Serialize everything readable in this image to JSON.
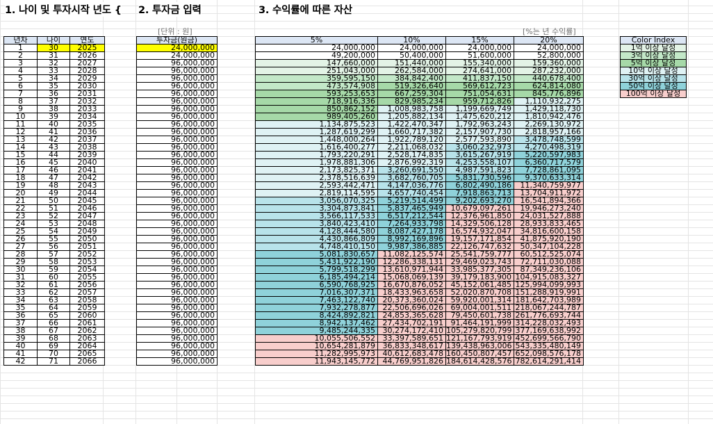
{
  "titles": {
    "sec1": "1. 나이 및 투자시작 년도 {",
    "sec2": "2. 투자금 입력",
    "sec3": "3. 수익률에 따른 자산"
  },
  "units": {
    "won": "[단위 : 원]",
    "rate": "[%는 년 수익률]"
  },
  "table1": {
    "headers": [
      "년차",
      "나이",
      "연도"
    ],
    "start_age": 30,
    "start_year": 2025,
    "rows": 42
  },
  "table2": {
    "header": "투자금(원금)",
    "values": [
      "24,000,000",
      "24,000,000",
      "96,000,000",
      "96,000,000",
      "96,000,000",
      "96,000,000",
      "96,000,000",
      "96,000,000",
      "96,000,000",
      "96,000,000",
      "96,000,000",
      "96,000,000",
      "96,000,000",
      "96,000,000",
      "96,000,000",
      "96,000,000",
      "96,000,000",
      "96,000,000",
      "96,000,000",
      "96,000,000",
      "96,000,000",
      "96,000,000",
      "96,000,000",
      "96,000,000",
      "96,000,000",
      "96,000,000",
      "96,000,000",
      "96,000,000",
      "96,000,000",
      "96,000,000",
      "96,000,000",
      "96,000,000",
      "96,000,000",
      "96,000,000",
      "96,000,000",
      "96,000,000",
      "96,000,000",
      "96,000,000",
      "96,000,000",
      "96,000,000",
      "96,000,000",
      "96,000,000"
    ]
  },
  "table3": {
    "headers": [
      "5%",
      "10%",
      "15%",
      "20%"
    ],
    "columns": [
      [
        "24,000,000",
        "49,200,000",
        "147,660,000",
        "251,043,000",
        "359,595,150",
        "473,574,908",
        "593,253,653",
        "718,916,336",
        "850,862,152",
        "989,405,260",
        "1,134,875,523",
        "1,287,619,299",
        "1,448,000,264",
        "1,616,400,277",
        "1,793,220,291",
        "1,978,881,306",
        "2,173,825,371",
        "2,378,516,639",
        "2,593,442,471",
        "2,819,114,595",
        "3,056,070,325",
        "3,304,873,841",
        "3,566,117,533",
        "3,840,423,410",
        "4,128,444,580",
        "4,430,866,809",
        "4,748,410,150",
        "5,081,830,657",
        "5,431,922,190",
        "5,799,518,299",
        "6,185,494,214",
        "6,590,768,925",
        "7,016,307,371",
        "7,463,122,740",
        "7,932,278,877",
        "8,424,892,821",
        "8,942,137,462",
        "9,485,244,335",
        "10,055,506,552",
        "10,654,281,879",
        "11,282,995,973",
        "11,943,145,772"
      ],
      [
        "24,000,000",
        "50,400,000",
        "151,440,000",
        "262,584,000",
        "384,842,400",
        "519,326,640",
        "667,259,304",
        "829,985,234",
        "1,008,983,758",
        "1,205,882,134",
        "1,422,470,347",
        "1,660,717,382",
        "1,922,789,120",
        "2,211,068,032",
        "2,528,174,835",
        "2,876,992,319",
        "3,260,691,550",
        "3,682,760,705",
        "4,147,036,776",
        "4,657,740,454",
        "5,219,514,499",
        "5,837,465,949",
        "6,517,212,544",
        "7,264,933,798",
        "8,087,427,178",
        "8,992,169,896",
        "9,987,386,885",
        "11,082,125,574",
        "12,286,338,131",
        "13,610,971,944",
        "15,068,069,139",
        "16,670,876,052",
        "18,433,963,658",
        "20,373,360,024",
        "22,506,696,026",
        "24,853,365,628",
        "27,434,702,191",
        "30,274,172,410",
        "33,397,589,651",
        "36,833,348,617",
        "40,612,683,478",
        "44,769,951,826"
      ],
      [
        "24,000,000",
        "51,600,000",
        "155,340,000",
        "274,641,000",
        "411,837,150",
        "569,612,723",
        "751,054,631",
        "959,712,826",
        "1,199,669,749",
        "1,475,620,212",
        "1,792,963,243",
        "2,157,907,730",
        "2,577,593,890",
        "3,060,232,973",
        "3,615,267,919",
        "4,253,558,107",
        "4,987,591,823",
        "5,831,730,596",
        "6,802,490,186",
        "7,918,863,713",
        "9,202,693,270",
        "10,679,097,261",
        "12,376,961,850",
        "14,329,506,128",
        "16,574,932,047",
        "19,157,171,854",
        "22,126,747,632",
        "25,541,759,777",
        "29,469,023,743",
        "33,985,377,305",
        "39,179,183,900",
        "45,152,061,485",
        "52,020,870,708",
        "59,920,001,314",
        "69,004,001,511",
        "79,450,601,738",
        "91,464,191,999",
        "105,279,820,799",
        "121,167,793,919",
        "139,438,963,006",
        "160,450,807,457",
        "184,614,428,576"
      ],
      [
        "24,000,000",
        "52,800,000",
        "159,360,000",
        "287,232,000",
        "440,678,400",
        "624,814,080",
        "845,776,896",
        "1,110,932,275",
        "1,429,118,730",
        "1,810,942,476",
        "2,269,130,972",
        "2,818,957,166",
        "3,478,748,599",
        "4,270,498,319",
        "5,220,597,983",
        "6,360,717,579",
        "7,728,861,095",
        "9,370,633,314",
        "11,340,759,977",
        "13,704,911,972",
        "16,541,894,366",
        "19,946,273,240",
        "24,031,527,888",
        "28,933,833,465",
        "34,816,600,158",
        "41,875,920,190",
        "50,347,104,228",
        "60,512,525,074",
        "72,711,030,088",
        "87,349,236,106",
        "104,915,083,327",
        "125,994,099,993",
        "151,288,919,991",
        "181,642,703,989",
        "218,067,244,787",
        "261,776,693,744",
        "314,228,032,493",
        "377,169,638,992",
        "452,699,566,790",
        "543,335,480,149",
        "652,098,576,178",
        "782,614,291,414"
      ]
    ]
  },
  "legend": {
    "title": "Color Index",
    "items": [
      {
        "label": "1억 이상 달성",
        "color": "#e3f3e6"
      },
      {
        "label": "3억 이상 달성",
        "color": "#c3e8c8"
      },
      {
        "label": "5억 이상 달성",
        "color": "#a6d9a8"
      },
      {
        "label": "10억 이상 달성",
        "color": "#dff2f4"
      },
      {
        "label": "30억 이상 달성",
        "color": "#b8e3ea"
      },
      {
        "label": "50억 이상 달성",
        "color": "#8fd2da"
      },
      {
        "label": "100억 이상 달성",
        "color": "#f8cecc"
      }
    ]
  },
  "colors": {
    "header_bg": "#dce6f4",
    "highlight": "#ffff00",
    "tier_1e8": "#e3f3e6",
    "tier_3e8": "#c3e8c8",
    "tier_5e8": "#a6d9a8",
    "tier_1e9": "#dff2f4",
    "tier_3e9": "#b8e3ea",
    "tier_5e9": "#8fd2da",
    "tier_1e10": "#f8cecc"
  }
}
